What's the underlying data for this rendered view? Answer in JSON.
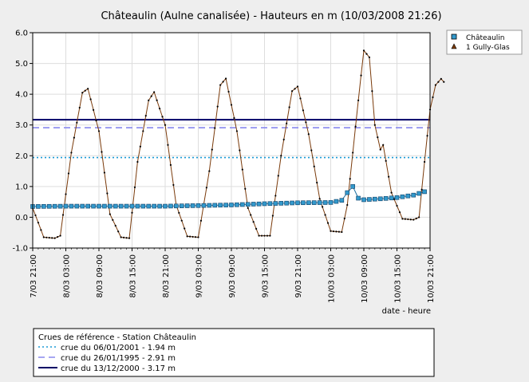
{
  "chart_data": {
    "type": "line",
    "title": "Châteaulin (Aulne canalisée) - Hauteurs en m (10/03/2008 21:26)",
    "xlabel": "date - heure",
    "ylabel": "",
    "ylim": [
      -1.0,
      6.0
    ],
    "y_ticks": [
      "6.0",
      "5.0",
      "4.0",
      "3.0",
      "2.0",
      "1.0",
      "0.0",
      "-1.0"
    ],
    "x_range": [
      "07/03/2008 21:00",
      "10/03/2008 21:00"
    ],
    "x_ticks": [
      "7/03 21:00",
      "8/03 03:00",
      "8/03 09:00",
      "8/03 15:00",
      "8/03 21:00",
      "9/03 03:00",
      "9/03 09:00",
      "9/03 15:00",
      "9/03 21:00",
      "10/03 03:00",
      "10/03 09:00",
      "10/03 15:00",
      "10/03 21:00"
    ],
    "grid": true,
    "legend_position": "right-top",
    "series": [
      {
        "name": "Châteaulin",
        "color": "#3399cc",
        "marker": "square",
        "points": [
          [
            "07/03/2008 21:00",
            0.35
          ],
          [
            "08/03/2008 03:00",
            0.36
          ],
          [
            "08/03/2008 09:00",
            0.36
          ],
          [
            "08/03/2008 15:00",
            0.36
          ],
          [
            "08/03/2008 21:00",
            0.36
          ],
          [
            "09/03/2008 03:00",
            0.38
          ],
          [
            "09/03/2008 09:00",
            0.4
          ],
          [
            "09/03/2008 15:00",
            0.44
          ],
          [
            "09/03/2008 21:00",
            0.47
          ],
          [
            "10/03/2008 03:00",
            0.48
          ],
          [
            "10/03/2008 05:00",
            0.55
          ],
          [
            "10/03/2008 06:00",
            0.8
          ],
          [
            "10/03/2008 07:00",
            1.0
          ],
          [
            "10/03/2008 08:00",
            0.62
          ],
          [
            "10/03/2008 09:00",
            0.57
          ],
          [
            "10/03/2008 12:00",
            0.6
          ],
          [
            "10/03/2008 15:00",
            0.64
          ],
          [
            "10/03/2008 18:00",
            0.72
          ],
          [
            "10/03/2008 20:00",
            0.83
          ]
        ]
      },
      {
        "name": "1 Gully-Glas",
        "color": "#7a3a0a",
        "marker": "triangle",
        "points": [
          [
            "07/03/2008 21:00",
            0.3
          ],
          [
            "07/03/2008 23:00",
            -0.65
          ],
          [
            "08/03/2008 01:00",
            -0.68
          ],
          [
            "08/03/2008 02:00",
            -0.6
          ],
          [
            "08/03/2008 04:00",
            2.1
          ],
          [
            "08/03/2008 06:00",
            4.05
          ],
          [
            "08/03/2008 07:00",
            4.18
          ],
          [
            "08/03/2008 09:00",
            2.8
          ],
          [
            "08/03/2008 11:00",
            0.1
          ],
          [
            "08/03/2008 13:00",
            -0.65
          ],
          [
            "08/03/2008 14:30",
            -0.68
          ],
          [
            "08/03/2008 16:00",
            1.8
          ],
          [
            "08/03/2008 18:00",
            3.8
          ],
          [
            "08/03/2008 19:00",
            4.07
          ],
          [
            "08/03/2008 21:00",
            3.0
          ],
          [
            "08/03/2008 23:00",
            0.4
          ],
          [
            "09/03/2008 01:00",
            -0.62
          ],
          [
            "09/03/2008 03:00",
            -0.65
          ],
          [
            "09/03/2008 05:00",
            1.5
          ],
          [
            "09/03/2008 07:00",
            4.3
          ],
          [
            "09/03/2008 08:00",
            4.51
          ],
          [
            "09/03/2008 10:00",
            2.8
          ],
          [
            "09/03/2008 12:00",
            0.3
          ],
          [
            "09/03/2008 14:00",
            -0.6
          ],
          [
            "09/03/2008 16:00",
            -0.6
          ],
          [
            "09/03/2008 18:00",
            2.0
          ],
          [
            "09/03/2008 20:00",
            4.1
          ],
          [
            "09/03/2008 21:00",
            4.25
          ],
          [
            "09/03/2008 23:00",
            2.7
          ],
          [
            "10/03/2008 01:00",
            0.6
          ],
          [
            "10/03/2008 03:00",
            -0.45
          ],
          [
            "10/03/2008 05:00",
            -0.48
          ],
          [
            "10/03/2008 06:00",
            0.4
          ],
          [
            "10/03/2008 08:00",
            3.8
          ],
          [
            "10/03/2008 09:00",
            5.42
          ],
          [
            "10/03/2008 10:00",
            5.2
          ],
          [
            "10/03/2008 11:00",
            3.0
          ],
          [
            "10/03/2008 12:00",
            2.2
          ],
          [
            "10/03/2008 12:30",
            2.35
          ],
          [
            "10/03/2008 14:00",
            0.8
          ],
          [
            "10/03/2008 16:00",
            -0.05
          ],
          [
            "10/03/2008 18:00",
            -0.08
          ],
          [
            "10/03/2008 19:00",
            0.0
          ],
          [
            "10/03/2008 20:00",
            1.8
          ],
          [
            "10/03/2008 21:00",
            3.5
          ],
          [
            "10/03/2008 22:00",
            4.3
          ],
          [
            "10/03/2008 23:00",
            4.5
          ],
          [
            "10/03/2008 23:30",
            4.4
          ]
        ]
      }
    ],
    "reference_lines": [
      {
        "value": 1.94,
        "style": "dotted",
        "color": "#1a9ad6"
      },
      {
        "value": 2.91,
        "style": "dashed",
        "color": "#8888ee"
      },
      {
        "value": 3.17,
        "style": "solid",
        "color": "#000066"
      }
    ]
  },
  "reference_legend": {
    "title": "Crues de référence - Station Châteaulin",
    "items": [
      {
        "label": "crue du 06/01/2001 - 1.94 m",
        "style": "dotted",
        "color": "#1a9ad6"
      },
      {
        "label": "crue du 26/01/1995 - 2.91 m",
        "style": "dashed",
        "color": "#8888ee"
      },
      {
        "label": "crue du 13/12/2000 - 3.17 m",
        "style": "solid",
        "color": "#000066"
      }
    ]
  }
}
